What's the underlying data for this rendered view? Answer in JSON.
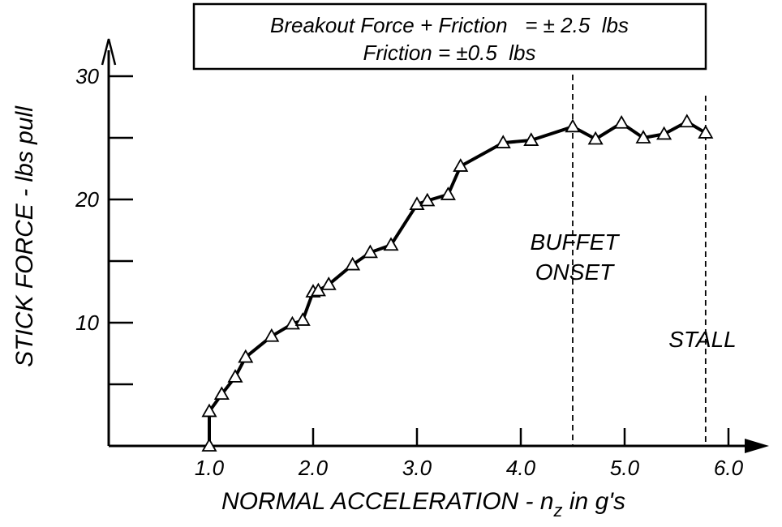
{
  "chart_data": {
    "type": "line",
    "title": "",
    "xlabel": "NORMAL ACCELERATION - n",
    "xlabel_subscript": "z",
    "xlabel_suffix": " in g's",
    "ylabel": "STICK FORCE - lbs pull",
    "xlim": [
      0,
      6.4
    ],
    "ylim": [
      0,
      33
    ],
    "x_ticks": [
      1.0,
      2.0,
      3.0,
      4.0,
      5.0,
      6.0
    ],
    "x_tick_labels": [
      "1.0",
      "2.0",
      "3.0",
      "4.0",
      "5.0",
      "6.0"
    ],
    "y_ticks": [
      5,
      10,
      15,
      20,
      25,
      30
    ],
    "y_tick_labels": [
      "",
      "10",
      "",
      "20",
      "",
      "30"
    ],
    "grid": false,
    "legend_box": {
      "line1": "Breakout Force + Friction   = ± 2.5  lbs",
      "line2": "Friction = ±0.5  lbs"
    },
    "series": [
      {
        "marker": "triangle-open",
        "x": [
          1.0,
          1.0,
          1.12,
          1.25,
          1.35,
          1.6,
          1.8,
          1.9,
          2.0,
          2.05,
          2.15,
          2.38,
          2.55,
          2.75,
          3.0,
          3.1,
          3.3,
          3.42,
          3.83,
          4.1,
          4.5,
          4.72,
          4.97,
          5.18,
          5.38,
          5.6,
          5.78
        ],
        "y": [
          0,
          2.8,
          4.2,
          5.6,
          7.2,
          8.9,
          9.9,
          10.2,
          12.5,
          12.6,
          13.1,
          14.7,
          15.7,
          16.3,
          19.6,
          19.9,
          20.4,
          22.7,
          24.6,
          24.8,
          25.9,
          24.9,
          26.2,
          25.0,
          25.3,
          26.3,
          25.4
        ]
      }
    ],
    "annotations": [
      {
        "text_lines": [
          "BUFFET",
          "ONSET"
        ],
        "x": 4.5
      },
      {
        "text_lines": [
          "STALL"
        ],
        "x": 5.78
      }
    ]
  }
}
